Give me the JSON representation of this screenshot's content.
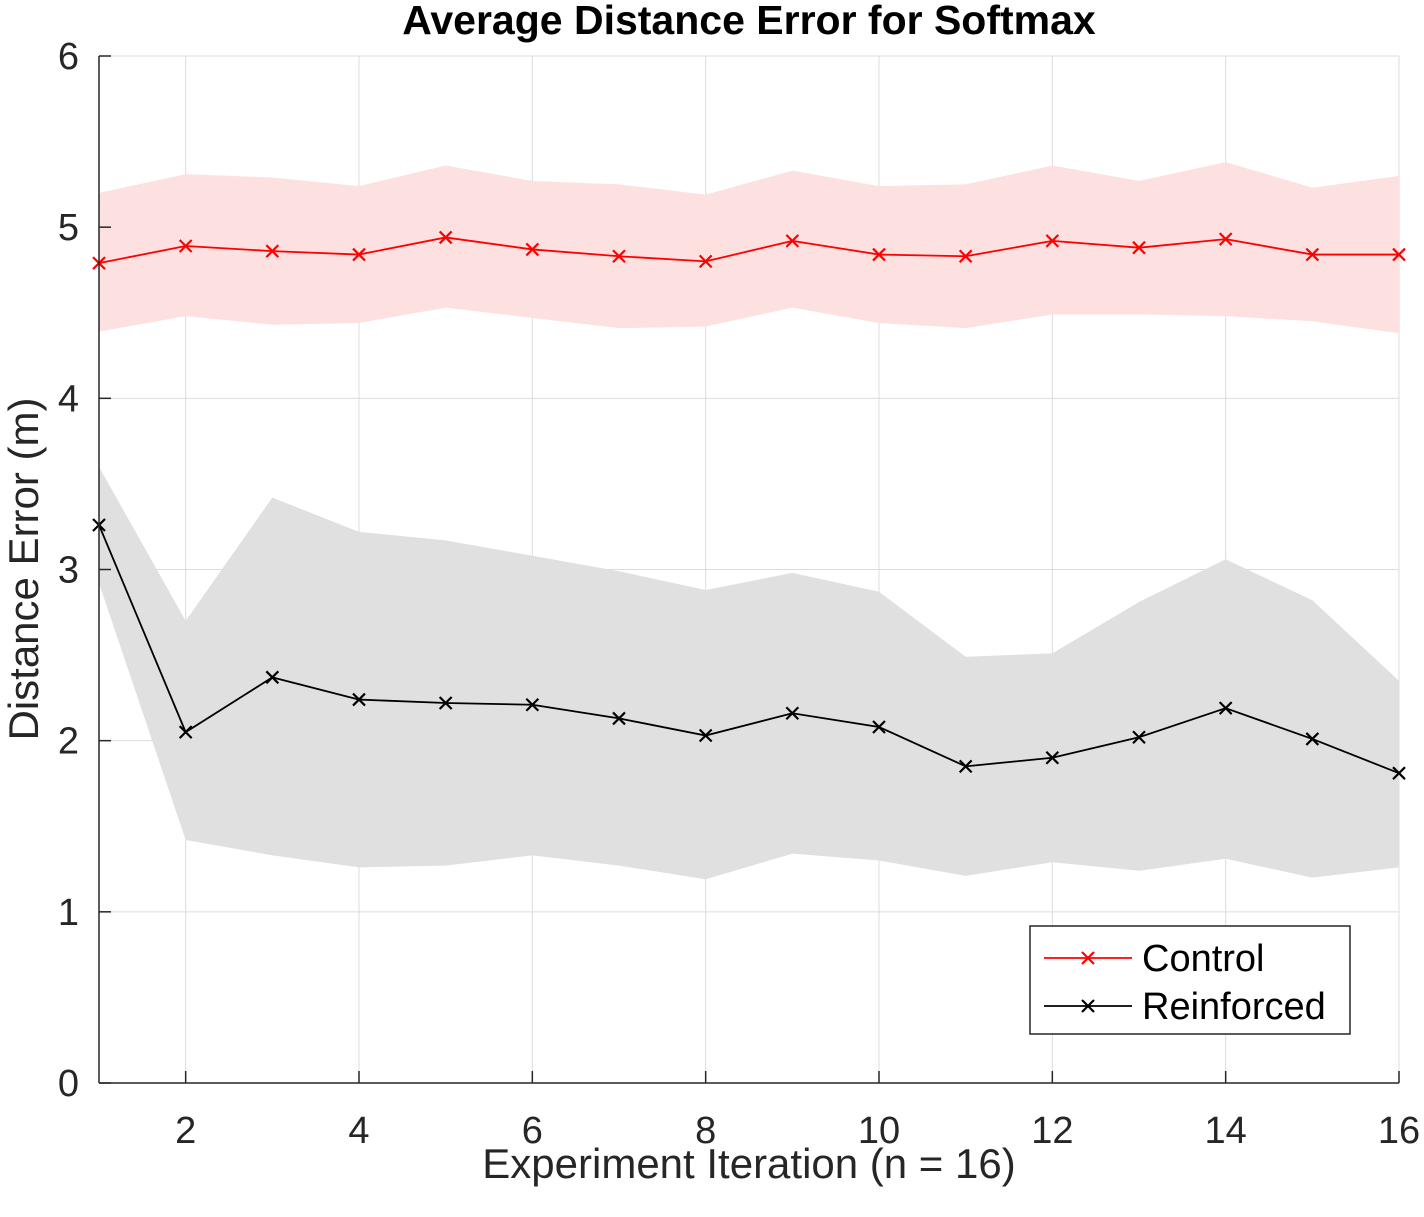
{
  "chart_data": {
    "type": "line",
    "title": "Average Distance Error for Softmax",
    "xlabel": "Experiment Iteration (n = 16)",
    "ylabel": "Distance Error (m)",
    "xlim": [
      1,
      16
    ],
    "ylim": [
      0,
      6
    ],
    "x": [
      1,
      2,
      3,
      4,
      5,
      6,
      7,
      8,
      9,
      10,
      11,
      12,
      13,
      14,
      15,
      16
    ],
    "xticks": [
      2,
      4,
      6,
      8,
      10,
      12,
      14,
      16
    ],
    "yticks": [
      0,
      1,
      2,
      3,
      4,
      5,
      6
    ],
    "grid": true,
    "legend_position": "bottom-right",
    "series": [
      {
        "name": "Control",
        "color": "#ff0000",
        "band_color": "#fde0e0",
        "marker": "x",
        "values": [
          4.79,
          4.89,
          4.86,
          4.84,
          4.94,
          4.87,
          4.83,
          4.8,
          4.92,
          4.84,
          4.83,
          4.92,
          4.88,
          4.93,
          4.84,
          4.84
        ],
        "upper": [
          5.2,
          5.31,
          5.29,
          5.24,
          5.36,
          5.27,
          5.25,
          5.19,
          5.33,
          5.24,
          5.25,
          5.36,
          5.27,
          5.38,
          5.23,
          5.3
        ],
        "lower": [
          4.39,
          4.48,
          4.43,
          4.44,
          4.53,
          4.47,
          4.41,
          4.42,
          4.53,
          4.44,
          4.41,
          4.49,
          4.49,
          4.48,
          4.45,
          4.38
        ]
      },
      {
        "name": "Reinforced",
        "color": "#000000",
        "band_color": "#e0e0e0",
        "marker": "x",
        "values": [
          3.26,
          2.05,
          2.37,
          2.24,
          2.22,
          2.21,
          2.13,
          2.03,
          2.16,
          2.08,
          1.85,
          1.9,
          2.02,
          2.19,
          2.01,
          1.81
        ],
        "upper": [
          3.6,
          2.7,
          3.42,
          3.22,
          3.17,
          3.08,
          2.99,
          2.88,
          2.98,
          2.87,
          2.49,
          2.51,
          2.81,
          3.06,
          2.82,
          2.35
        ],
        "lower": [
          2.92,
          1.42,
          1.33,
          1.26,
          1.27,
          1.33,
          1.27,
          1.19,
          1.34,
          1.3,
          1.21,
          1.29,
          1.24,
          1.31,
          1.2,
          1.26
        ]
      }
    ]
  }
}
